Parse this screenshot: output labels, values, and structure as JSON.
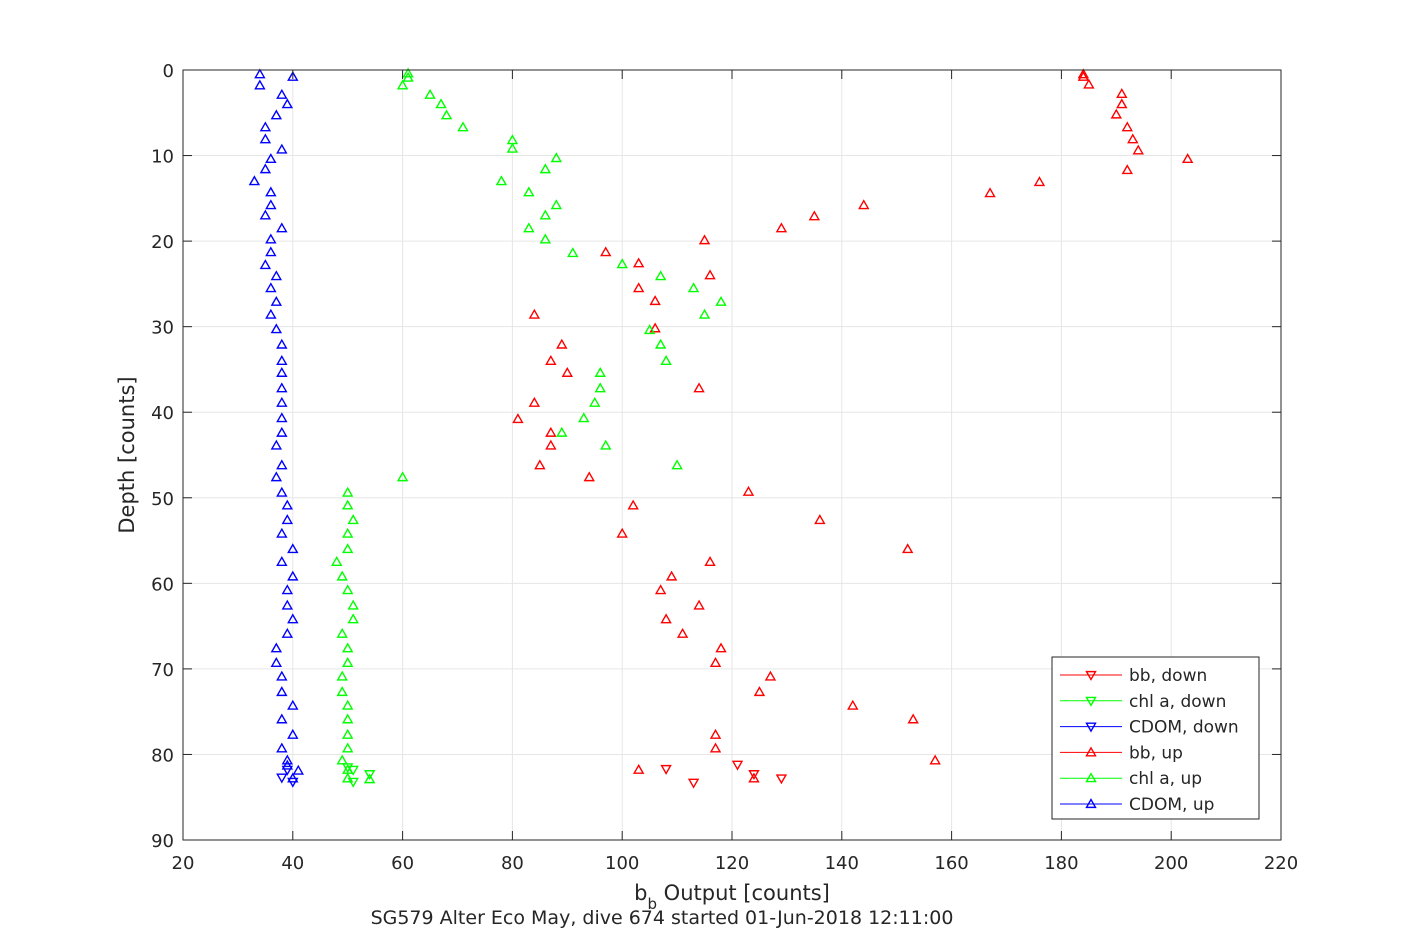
{
  "chart_data": {
    "type": "scatter",
    "title": "",
    "xlabel_main": "b",
    "xlabel_sub": "b",
    "xlabel_rest": " Output [counts]",
    "ylabel": "Depth [counts]",
    "caption": "SG579 Alter Eco May, dive 674 started 01-Jun-2018 12:11:00",
    "xlim": [
      20,
      220
    ],
    "ylim": [
      0,
      90
    ],
    "y_reversed": true,
    "grid": true,
    "legend_position": "bottom-right",
    "x_ticks": [
      "20",
      "40",
      "60",
      "80",
      "100",
      "120",
      "140",
      "160",
      "180",
      "200",
      "220"
    ],
    "y_ticks": [
      "0",
      "10",
      "20",
      "30",
      "40",
      "50",
      "60",
      "70",
      "80",
      "90"
    ],
    "colors": {
      "bb": "#ff0000",
      "chl": "#00ff00",
      "cdom": "#0000ff",
      "axis": "#262626",
      "grid": "#e6e6e6"
    },
    "series": [
      {
        "name": "bb, down",
        "color": "#ff0000",
        "marker": "triangle-down",
        "points": [
          [
            108,
            81.7
          ],
          [
            113,
            83.3
          ],
          [
            121,
            81.2
          ],
          [
            124,
            82.3
          ],
          [
            129,
            82.8
          ]
        ]
      },
      {
        "name": "chl a, down",
        "color": "#00ff00",
        "marker": "triangle-down",
        "points": [
          [
            50,
            81.5
          ],
          [
            51,
            81.8
          ],
          [
            54,
            82.3
          ],
          [
            51,
            83.2
          ]
        ]
      },
      {
        "name": "CDOM, down",
        "color": "#0000ff",
        "marker": "triangle-down",
        "points": [
          [
            38,
            82.7
          ],
          [
            39,
            81.8
          ],
          [
            40,
            83.2
          ]
        ]
      },
      {
        "name": "bb, up",
        "color": "#ff0000",
        "marker": "triangle-up",
        "points": [
          [
            184,
            0.5
          ],
          [
            184,
            0.8
          ],
          [
            185,
            1.7
          ],
          [
            191,
            2.8
          ],
          [
            191,
            4.0
          ],
          [
            190,
            5.2
          ],
          [
            192,
            6.7
          ],
          [
            193,
            8.1
          ],
          [
            194,
            9.4
          ],
          [
            203,
            10.4
          ],
          [
            192,
            11.7
          ],
          [
            176,
            13.1
          ],
          [
            167,
            14.4
          ],
          [
            144,
            15.8
          ],
          [
            135,
            17.1
          ],
          [
            129,
            18.5
          ],
          [
            115,
            19.9
          ],
          [
            97,
            21.3
          ],
          [
            103,
            22.6
          ],
          [
            116,
            24.0
          ],
          [
            103,
            25.5
          ],
          [
            106,
            27.0
          ],
          [
            84,
            28.6
          ],
          [
            106,
            30.2
          ],
          [
            89,
            32.1
          ],
          [
            87,
            34.0
          ],
          [
            90,
            35.4
          ],
          [
            114,
            37.2
          ],
          [
            84,
            38.9
          ],
          [
            81,
            40.8
          ],
          [
            87,
            42.4
          ],
          [
            87,
            43.9
          ],
          [
            85,
            46.2
          ],
          [
            94,
            47.6
          ],
          [
            123,
            49.3
          ],
          [
            102,
            50.9
          ],
          [
            136,
            52.6
          ],
          [
            100,
            54.2
          ],
          [
            152,
            56.0
          ],
          [
            116,
            57.5
          ],
          [
            109,
            59.2
          ],
          [
            107,
            60.8
          ],
          [
            114,
            62.6
          ],
          [
            108,
            64.2
          ],
          [
            111,
            65.9
          ],
          [
            118,
            67.6
          ],
          [
            117,
            69.3
          ],
          [
            127,
            70.9
          ],
          [
            125,
            72.7
          ],
          [
            142,
            74.3
          ],
          [
            153,
            75.9
          ],
          [
            117,
            77.7
          ],
          [
            117,
            79.3
          ],
          [
            157,
            80.7
          ],
          [
            103,
            81.8
          ],
          [
            124,
            82.8
          ]
        ]
      },
      {
        "name": "chl a, up",
        "color": "#00ff00",
        "marker": "triangle-up",
        "points": [
          [
            61,
            0.4
          ],
          [
            61,
            0.9
          ],
          [
            60,
            1.8
          ],
          [
            65,
            2.9
          ],
          [
            67,
            4.0
          ],
          [
            68,
            5.3
          ],
          [
            71,
            6.7
          ],
          [
            80,
            8.2
          ],
          [
            80,
            9.2
          ],
          [
            88,
            10.3
          ],
          [
            86,
            11.6
          ],
          [
            78,
            13.0
          ],
          [
            83,
            14.3
          ],
          [
            88,
            15.8
          ],
          [
            86,
            17.0
          ],
          [
            83,
            18.5
          ],
          [
            86,
            19.8
          ],
          [
            91,
            21.4
          ],
          [
            100,
            22.7
          ],
          [
            107,
            24.1
          ],
          [
            113,
            25.5
          ],
          [
            118,
            27.1
          ],
          [
            115,
            28.6
          ],
          [
            105,
            30.4
          ],
          [
            107,
            32.1
          ],
          [
            108,
            34.0
          ],
          [
            96,
            35.4
          ],
          [
            96,
            37.2
          ],
          [
            95,
            38.9
          ],
          [
            93,
            40.7
          ],
          [
            89,
            42.4
          ],
          [
            97,
            43.9
          ],
          [
            110,
            46.2
          ],
          [
            60,
            47.6
          ],
          [
            50,
            49.4
          ],
          [
            50,
            50.9
          ],
          [
            51,
            52.6
          ],
          [
            50,
            54.2
          ],
          [
            50,
            56.0
          ],
          [
            48,
            57.5
          ],
          [
            49,
            59.2
          ],
          [
            50,
            60.8
          ],
          [
            51,
            62.6
          ],
          [
            51,
            64.2
          ],
          [
            49,
            65.9
          ],
          [
            50,
            67.6
          ],
          [
            50,
            69.3
          ],
          [
            49,
            70.9
          ],
          [
            49,
            72.7
          ],
          [
            50,
            74.3
          ],
          [
            50,
            75.9
          ],
          [
            50,
            77.7
          ],
          [
            50,
            79.3
          ],
          [
            49,
            80.7
          ],
          [
            50,
            81.8
          ],
          [
            50,
            82.8
          ],
          [
            54,
            82.9
          ]
        ]
      },
      {
        "name": "CDOM, up",
        "color": "#0000ff",
        "marker": "triangle-up",
        "points": [
          [
            34,
            0.5
          ],
          [
            40,
            0.8
          ],
          [
            34,
            1.8
          ],
          [
            38,
            2.9
          ],
          [
            39,
            4.0
          ],
          [
            37,
            5.3
          ],
          [
            35,
            6.7
          ],
          [
            35,
            8.1
          ],
          [
            38,
            9.3
          ],
          [
            36,
            10.4
          ],
          [
            35,
            11.6
          ],
          [
            33,
            13.0
          ],
          [
            36,
            14.3
          ],
          [
            36,
            15.8
          ],
          [
            35,
            17.0
          ],
          [
            38,
            18.5
          ],
          [
            36,
            19.8
          ],
          [
            36,
            21.3
          ],
          [
            35,
            22.8
          ],
          [
            37,
            24.1
          ],
          [
            36,
            25.5
          ],
          [
            37,
            27.1
          ],
          [
            36,
            28.6
          ],
          [
            37,
            30.3
          ],
          [
            38,
            32.1
          ],
          [
            38,
            34.0
          ],
          [
            38,
            35.4
          ],
          [
            38,
            37.2
          ],
          [
            38,
            38.9
          ],
          [
            38,
            40.7
          ],
          [
            38,
            42.4
          ],
          [
            37,
            43.9
          ],
          [
            38,
            46.2
          ],
          [
            37,
            47.6
          ],
          [
            38,
            49.4
          ],
          [
            39,
            50.9
          ],
          [
            39,
            52.6
          ],
          [
            38,
            54.2
          ],
          [
            40,
            56.0
          ],
          [
            38,
            57.5
          ],
          [
            40,
            59.2
          ],
          [
            39,
            60.8
          ],
          [
            39,
            62.6
          ],
          [
            40,
            64.2
          ],
          [
            39,
            65.9
          ],
          [
            37,
            67.6
          ],
          [
            37,
            69.3
          ],
          [
            38,
            70.9
          ],
          [
            38,
            72.7
          ],
          [
            40,
            74.3
          ],
          [
            38,
            75.9
          ],
          [
            40,
            77.7
          ],
          [
            38,
            79.3
          ],
          [
            39,
            80.7
          ],
          [
            39,
            81.3
          ],
          [
            41,
            81.9
          ],
          [
            40,
            82.8
          ]
        ]
      }
    ]
  }
}
